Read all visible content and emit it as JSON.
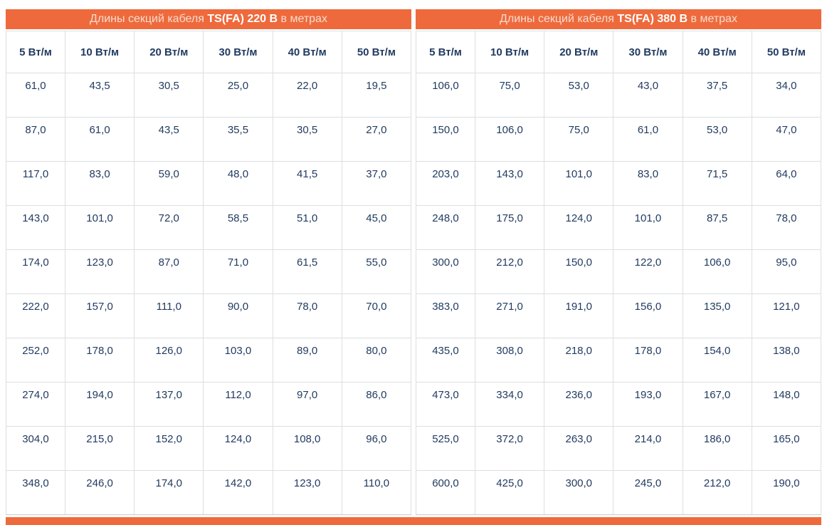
{
  "colors": {
    "accent_orange": "#EE6A3C",
    "title_text_regular": "#F8DCD0",
    "title_text_bold": "#FFFFFF",
    "cell_text": "#223B61",
    "grid_border": "#DCDEE0"
  },
  "tables": [
    {
      "title": {
        "prefix": "Длины секций кабеля ",
        "bold": "TS(FA) 220 В",
        "suffix": " в метрах"
      },
      "columns": [
        "5 Вт/м",
        "10 Вт/м",
        "20 Вт/м",
        "30 Вт/м",
        "40 Вт/м",
        "50 Вт/м"
      ],
      "rows": [
        [
          "61,0",
          "43,5",
          "30,5",
          "25,0",
          "22,0",
          "19,5"
        ],
        [
          "87,0",
          "61,0",
          "43,5",
          "35,5",
          "30,5",
          "27,0"
        ],
        [
          "117,0",
          "83,0",
          "59,0",
          "48,0",
          "41,5",
          "37,0"
        ],
        [
          "143,0",
          "101,0",
          "72,0",
          "58,5",
          "51,0",
          "45,0"
        ],
        [
          "174,0",
          "123,0",
          "87,0",
          "71,0",
          "61,5",
          "55,0"
        ],
        [
          "222,0",
          "157,0",
          "111,0",
          "90,0",
          "78,0",
          "70,0"
        ],
        [
          "252,0",
          "178,0",
          "126,0",
          "103,0",
          "89,0",
          "80,0"
        ],
        [
          "274,0",
          "194,0",
          "137,0",
          "112,0",
          "97,0",
          "86,0"
        ],
        [
          "304,0",
          "215,0",
          "152,0",
          "124,0",
          "108,0",
          "96,0"
        ],
        [
          "348,0",
          "246,0",
          "174,0",
          "142,0",
          "123,0",
          "110,0"
        ]
      ]
    },
    {
      "title": {
        "prefix": "Длины секций кабеля ",
        "bold": "TS(FA) 380 В",
        "suffix": " в метрах"
      },
      "columns": [
        "5 Вт/м",
        "10 Вт/м",
        "20 Вт/м",
        "30 Вт/м",
        "40 Вт/м",
        "50 Вт/м"
      ],
      "rows": [
        [
          "106,0",
          "75,0",
          "53,0",
          "43,0",
          "37,5",
          "34,0"
        ],
        [
          "150,0",
          "106,0",
          "75,0",
          "61,0",
          "53,0",
          "47,0"
        ],
        [
          "203,0",
          "143,0",
          "101,0",
          "83,0",
          "71,5",
          "64,0"
        ],
        [
          "248,0",
          "175,0",
          "124,0",
          "101,0",
          "87,5",
          "78,0"
        ],
        [
          "300,0",
          "212,0",
          "150,0",
          "122,0",
          "106,0",
          "95,0"
        ],
        [
          "383,0",
          "271,0",
          "191,0",
          "156,0",
          "135,0",
          "121,0"
        ],
        [
          "435,0",
          "308,0",
          "218,0",
          "178,0",
          "154,0",
          "138,0"
        ],
        [
          "473,0",
          "334,0",
          "236,0",
          "193,0",
          "167,0",
          "148,0"
        ],
        [
          "525,0",
          "372,0",
          "263,0",
          "214,0",
          "186,0",
          "165,0"
        ],
        [
          "600,0",
          "425,0",
          "300,0",
          "245,0",
          "212,0",
          "190,0"
        ]
      ]
    }
  ]
}
